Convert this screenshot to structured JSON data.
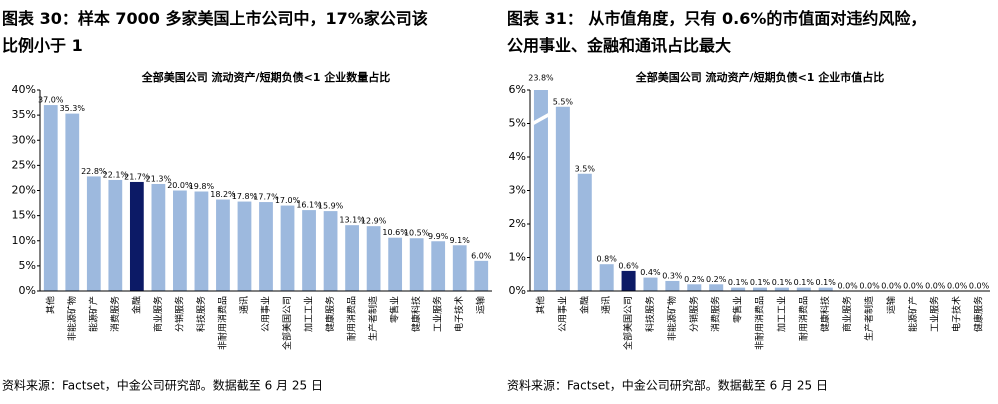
{
  "chart_data": [
    {
      "type": "bar",
      "caption": [
        "图表 30：样本 7000 多家美国上市公司中，17%家公司该",
        "比例小于 1"
      ],
      "title": "全部美国公司 流动资产/短期负债<1 企业数量占比",
      "categories": [
        "其他",
        "非能源矿物",
        "能源矿产",
        "消费服务",
        "金融",
        "商业服务",
        "分销服务",
        "科技服务",
        "非耐用消费品",
        "通讯",
        "公用事业",
        "全部美国公司",
        "加工工业",
        "健康服务",
        "耐用消费品",
        "生产者制造",
        "零售业",
        "健康科技",
        "工业服务",
        "电子技术",
        "运输"
      ],
      "values": [
        37.0,
        35.3,
        22.8,
        22.1,
        21.7,
        21.3,
        20.0,
        19.8,
        18.2,
        17.8,
        17.7,
        17.0,
        16.1,
        15.9,
        13.1,
        12.9,
        10.6,
        10.5,
        9.9,
        9.1,
        6.0
      ],
      "value_labels": [
        "37.0%",
        "35.3%",
        "22.8%",
        "22.1%",
        "21.7%",
        "21.3%",
        "20.0%",
        "19.8%",
        "18.2%",
        "17.8%",
        "17.7%",
        "17.0%",
        "16.1%",
        "15.9%",
        "13.1%",
        "12.9%",
        "10.6%",
        "10.5%",
        "9.9%",
        "9.1%",
        "6.0%"
      ],
      "colors": [
        "#9db9de",
        "#9db9de",
        "#9db9de",
        "#9db9de",
        "#0c1a66",
        "#9db9de",
        "#9db9de",
        "#9db9de",
        "#9db9de",
        "#9db9de",
        "#9db9de",
        "#9db9de",
        "#9db9de",
        "#9db9de",
        "#9db9de",
        "#9db9de",
        "#9db9de",
        "#9db9de",
        "#9db9de",
        "#9db9de",
        "#9db9de"
      ],
      "ylim": [
        0,
        40
      ],
      "yticks": [
        {
          "value": 0,
          "label": "0%"
        },
        {
          "value": 5,
          "label": "5%"
        },
        {
          "value": 10,
          "label": "10%"
        },
        {
          "value": 15,
          "label": "15%"
        },
        {
          "value": 20,
          "label": "20%"
        },
        {
          "value": 25,
          "label": "25%"
        },
        {
          "value": 30,
          "label": "30%"
        },
        {
          "value": 35,
          "label": "35%"
        },
        {
          "value": 40,
          "label": "40%"
        }
      ],
      "axis_break": false,
      "source": "资料来源：Factset，中金公司研究部。数据截至 6 月 25 日"
    },
    {
      "type": "bar",
      "caption": [
        "图表 31： 从市值角度，只有 0.6%的市值面对违约风险，",
        "公用事业、金融和通讯占比最大"
      ],
      "title": "全部美国公司 流动资产/短期负债<1 企业市值占比",
      "categories": [
        "其他",
        "公用事业",
        "金融",
        "通讯",
        "全部美国公司",
        "科技服务",
        "非能源矿物",
        "分销服务",
        "消费服务",
        "零售业",
        "非耐用消费品",
        "加工工业",
        "耐用消费品",
        "健康科技",
        "商业服务",
        "生产者制造",
        "运输",
        "能源矿产",
        "工业服务",
        "电子技术",
        "健康服务"
      ],
      "values": [
        23.8,
        5.5,
        3.5,
        0.8,
        0.6,
        0.4,
        0.3,
        0.2,
        0.2,
        0.1,
        0.1,
        0.1,
        0.1,
        0.1,
        0.0,
        0.0,
        0.0,
        0.0,
        0.0,
        0.0,
        0.0
      ],
      "value_labels": [
        "23.8%",
        "5.5%",
        "3.5%",
        "0.8%",
        "0.6%",
        "0.4%",
        "0.3%",
        "0.2%",
        "0.2%",
        "0.1%",
        "0.1%",
        "0.1%",
        "0.1%",
        "0.1%",
        "0.0%",
        "0.0%",
        "0.0%",
        "0.0%",
        "0.0%",
        "0.0%",
        "0.0%"
      ],
      "colors": [
        "#9db9de",
        "#9db9de",
        "#9db9de",
        "#9db9de",
        "#0c1a66",
        "#9db9de",
        "#9db9de",
        "#9db9de",
        "#9db9de",
        "#9db9de",
        "#9db9de",
        "#9db9de",
        "#9db9de",
        "#9db9de",
        "#9db9de",
        "#9db9de",
        "#9db9de",
        "#9db9de",
        "#9db9de",
        "#9db9de",
        "#9db9de"
      ],
      "ylim": [
        0,
        6
      ],
      "yticks": [
        {
          "value": 0,
          "label": "0%"
        },
        {
          "value": 1,
          "label": "1%"
        },
        {
          "value": 2,
          "label": "2%"
        },
        {
          "value": 3,
          "label": "3%"
        },
        {
          "value": 4,
          "label": "4%"
        },
        {
          "value": 5,
          "label": "5%"
        },
        {
          "value": 6,
          "label": "6%"
        }
      ],
      "axis_break": true,
      "source": "资料来源：Factset，中金公司研究部。数据截至 6 月 25 日"
    }
  ]
}
